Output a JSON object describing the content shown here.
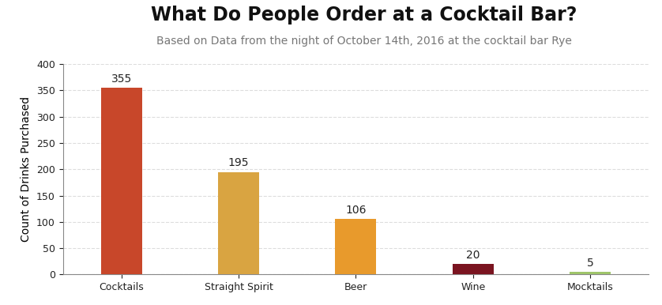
{
  "chart_data": {
    "type": "bar",
    "title": "What Do People Order at a Cocktail Bar?",
    "subtitle": "Based on Data from the night of October 14th, 2016 at the cocktail bar Rye",
    "y_label": "Count of Drinks Purchased",
    "categories": [
      "Cocktails",
      "Straight Spirit",
      "Beer",
      "Wine",
      "Mocktails"
    ],
    "values": [
      355,
      195,
      106,
      20,
      5
    ],
    "colors": [
      "#c8472a",
      "#d9a441",
      "#e89a2c",
      "#7a1420",
      "#9fc56a"
    ],
    "ylim": [
      0,
      400
    ],
    "yticks": [
      0,
      50,
      100,
      150,
      200,
      250,
      300,
      350,
      400
    ],
    "grid": true,
    "data_labels": true
  }
}
